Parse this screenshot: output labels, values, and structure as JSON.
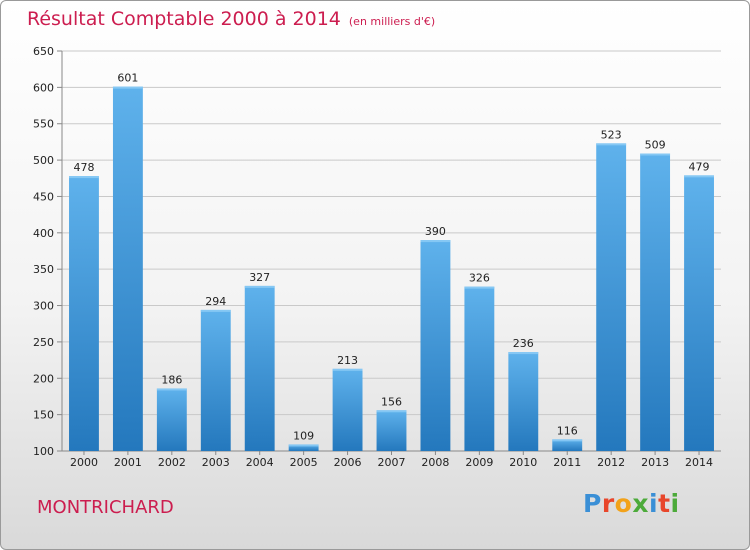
{
  "header": {
    "title": "Résultat Comptable 2000 à 2014",
    "unit": "(en milliers d'€)"
  },
  "footer": {
    "city": "MONTRICHARD",
    "logo": [
      "P",
      "r",
      "o",
      "x",
      "i",
      "t",
      "i"
    ],
    "logo_colors": [
      "#3a8fd6",
      "#e8462b",
      "#f2a21a",
      "#4caa3a",
      "#3a8fd6",
      "#e8462b",
      "#4caa3a"
    ]
  },
  "colors": {
    "accent": "#cc1d4f",
    "bar_top": "#5fb2ec",
    "bar_bottom": "#2478bd"
  },
  "chart_data": {
    "type": "bar",
    "title": "Résultat Comptable 2000 à 2014",
    "categories": [
      "2000",
      "2001",
      "2002",
      "2003",
      "2004",
      "2005",
      "2006",
      "2007",
      "2008",
      "2009",
      "2010",
      "2011",
      "2012",
      "2013",
      "2014"
    ],
    "values": [
      478,
      601,
      186,
      294,
      327,
      109,
      213,
      156,
      390,
      326,
      236,
      116,
      523,
      509,
      479
    ],
    "ylim": [
      100,
      650
    ],
    "yticks": [
      100,
      150,
      200,
      250,
      300,
      350,
      400,
      450,
      500,
      550,
      600,
      650
    ],
    "grid": true,
    "xlabel": "",
    "ylabel": ""
  }
}
